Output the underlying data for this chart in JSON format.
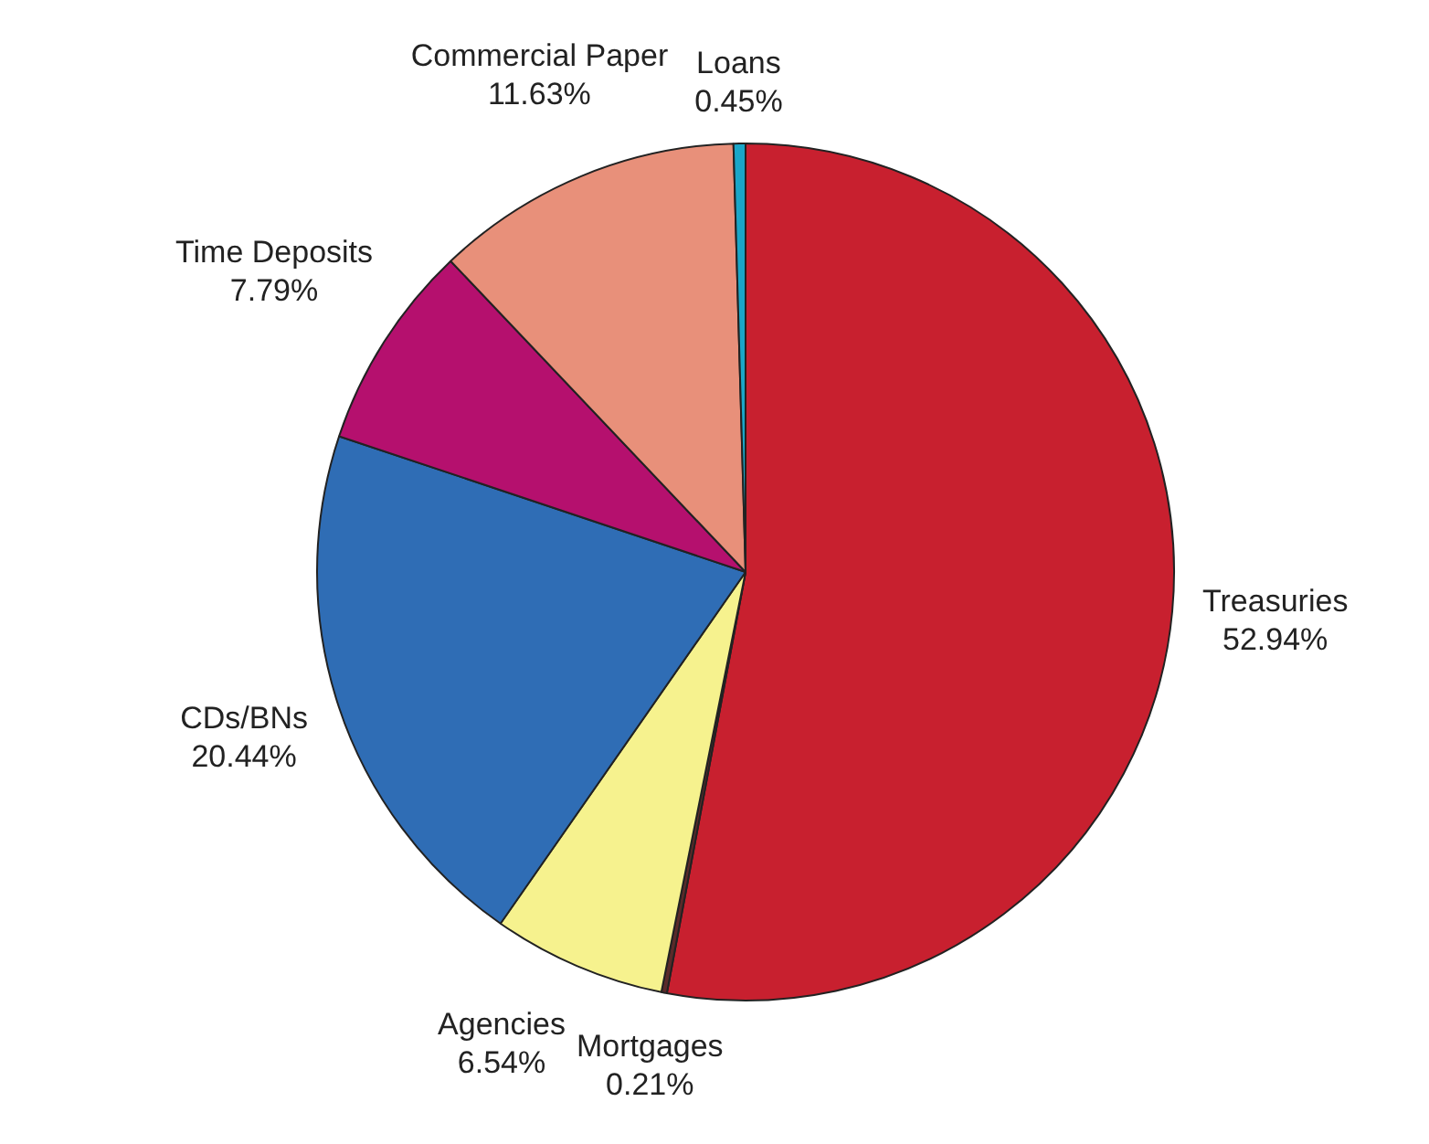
{
  "chart_data": {
    "type": "pie",
    "categories": [
      "Treasuries",
      "Mortgages",
      "Agencies",
      "CDs/BNs",
      "Time Deposits",
      "Commercial Paper",
      "Loans"
    ],
    "values": [
      52.94,
      0.21,
      6.54,
      20.44,
      7.79,
      11.63,
      0.45
    ],
    "value_labels": [
      "52.94%",
      "0.21%",
      "6.54%",
      "20.44%",
      "7.79%",
      "11.63%",
      "0.45%"
    ],
    "colors": [
      "#c8202f",
      "#5a2a2a",
      "#f6f28e",
      "#2f6db5",
      "#b5106e",
      "#e8907a",
      "#1aa6c8"
    ]
  }
}
